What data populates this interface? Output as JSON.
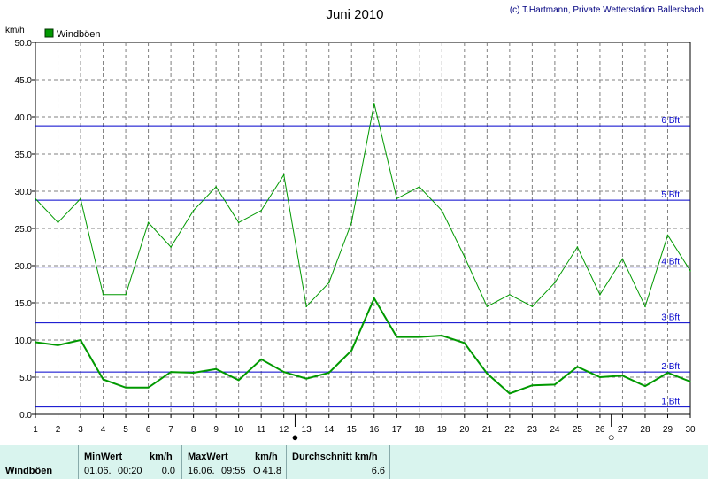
{
  "header": {
    "title": "Juni 2010",
    "credit": "(c) T.Hartmann, Private Wetterstation Ballersbach",
    "unit": "km/h",
    "legend": "Windböen"
  },
  "chart_data": {
    "type": "line",
    "title": "Juni 2010",
    "ylabel": "km/h",
    "ylim": [
      0,
      50
    ],
    "y_ticks": [
      "0.0",
      "5.0",
      "10.0",
      "15.0",
      "20.0",
      "25.0",
      "30.0",
      "35.0",
      "40.0",
      "45.0",
      "50.0"
    ],
    "x": [
      1,
      2,
      3,
      4,
      5,
      6,
      7,
      8,
      9,
      10,
      11,
      12,
      13,
      14,
      15,
      16,
      17,
      18,
      19,
      20,
      21,
      22,
      23,
      24,
      25,
      26,
      27,
      28,
      29,
      30
    ],
    "series": [
      {
        "name": "Windböen",
        "kind": "max",
        "values": [
          29.0,
          25.8,
          29.0,
          16.1,
          16.1,
          25.8,
          22.5,
          27.4,
          30.6,
          25.8,
          27.4,
          32.2,
          14.5,
          17.7,
          25.8,
          41.8,
          29.0,
          30.6,
          27.4,
          21.2,
          14.5,
          16.1,
          14.5,
          17.7,
          22.5,
          16.1,
          20.9,
          14.5,
          24.1,
          19.3
        ]
      },
      {
        "name": "Windböen",
        "kind": "average",
        "values": [
          9.7,
          9.3,
          10.0,
          4.7,
          3.6,
          3.6,
          5.7,
          5.6,
          6.1,
          4.6,
          7.4,
          5.7,
          4.8,
          5.6,
          8.6,
          15.6,
          10.4,
          10.4,
          10.6,
          9.6,
          5.5,
          2.8,
          3.9,
          4.0,
          6.4,
          5.0,
          5.2,
          3.8,
          5.6,
          4.4
        ]
      }
    ],
    "reference_lines": [
      {
        "label": "1 Bft",
        "value": 1.0
      },
      {
        "label": "2 Bft",
        "value": 5.7
      },
      {
        "label": "3 Bft",
        "value": 12.3
      },
      {
        "label": "4 Bft",
        "value": 19.8
      },
      {
        "label": "5 Bft",
        "value": 28.8
      },
      {
        "label": "6 Bft",
        "value": 38.8
      }
    ],
    "moon_phases": [
      {
        "day": 12.5,
        "symbol": "●"
      },
      {
        "day": 26.5,
        "symbol": "○"
      }
    ],
    "colors": {
      "line": "#009900",
      "reference": "#0000cc",
      "grid": "#808080"
    }
  },
  "stats": {
    "row_label": "Windböen",
    "min": {
      "label": "MinWert",
      "unit": "km/h",
      "date": "01.06.",
      "time": "00:20",
      "value": "0.0"
    },
    "max": {
      "label": "MaxWert",
      "unit": "km/h",
      "date": "16.06.",
      "time": "09:55",
      "dir": "O",
      "value": "41.8"
    },
    "avg": {
      "label": "Durchschnitt km/h",
      "value": "6.6"
    }
  }
}
